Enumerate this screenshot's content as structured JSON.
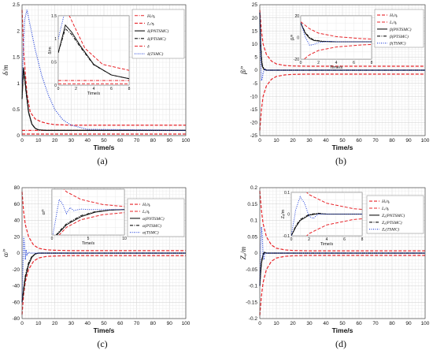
{
  "chart_data": [
    {
      "panel": "(a)",
      "type": "line",
      "xlabel": "Time/s",
      "ylabel": "δ/m",
      "xlim": [
        0,
        100
      ],
      "ylim": [
        0,
        2.5
      ],
      "xticks": [
        "0",
        "10",
        "20",
        "30",
        "40",
        "50",
        "60",
        "70",
        "80",
        "90",
        "100"
      ],
      "yticks": [
        "0",
        "0.5",
        "1",
        "1.5",
        "2",
        "2.5"
      ],
      "grid": true,
      "legend": "top-right",
      "series": [
        {
          "name": "Hᵢ/ηᵢ",
          "color": "#e8252a",
          "dash": "dashdot",
          "x": [
            0,
            100
          ],
          "y": [
            0.1,
            0.1
          ]
        },
        {
          "name": "Lᵢ/ηᵢ",
          "color": "#e8252a",
          "dash": "dash",
          "x": [
            0,
            1,
            3,
            5,
            8,
            12,
            16,
            20,
            30,
            50,
            100
          ],
          "y": [
            2.4,
            1.6,
            0.8,
            0.45,
            0.32,
            0.26,
            0.23,
            0.21,
            0.2,
            0.2,
            0.2
          ]
        },
        {
          "name": "δ(PNTSMC)",
          "color": "#111111",
          "dash": "solid",
          "x": [
            0,
            0.8,
            1.5,
            2.5,
            4,
            6,
            8,
            10,
            15,
            20,
            100
          ],
          "y": [
            0.7,
            1.3,
            1.15,
            0.85,
            0.45,
            0.22,
            0.14,
            0.11,
            0.1,
            0.1,
            0.1
          ]
        },
        {
          "name": "δ(PTSMC)",
          "color": "#111111",
          "dash": "dashdot",
          "x": [
            0,
            0.8,
            1.5,
            2.5,
            4,
            6,
            8,
            10,
            15,
            20,
            100
          ],
          "y": [
            0.7,
            1.22,
            1.1,
            0.82,
            0.44,
            0.22,
            0.14,
            0.11,
            0.1,
            0.1,
            0.1
          ]
        },
        {
          "name": "δ",
          "color": "#e8252a",
          "dash": "dash",
          "x": [
            0,
            100
          ],
          "y": [
            0.03,
            0.03
          ]
        },
        {
          "name": "δ(TSMC)",
          "color": "#1f3fd8",
          "dash": "dot",
          "x": [
            0,
            1.5,
            3,
            5,
            8,
            12,
            16,
            20,
            25,
            30,
            40,
            100
          ],
          "y": [
            1.0,
            2.2,
            2.4,
            2.1,
            1.65,
            1.15,
            0.78,
            0.5,
            0.3,
            0.2,
            0.12,
            0.1
          ]
        }
      ],
      "inset": {
        "xlim": [
          0,
          8
        ],
        "ylim": [
          0,
          1.5
        ],
        "xticks": [
          "0",
          "2",
          "4",
          "6",
          "8"
        ],
        "yticks": [
          "0",
          "0.5",
          "1",
          "1.5"
        ],
        "xlabel": "Time/s",
        "ylabel": "δ/m"
      }
    },
    {
      "panel": "(b)",
      "type": "line",
      "xlabel": "Time/s",
      "ylabel": "β/º",
      "xlim": [
        0,
        100
      ],
      "ylim": [
        -25,
        25
      ],
      "xticks": [
        "0",
        "10",
        "20",
        "30",
        "40",
        "50",
        "60",
        "70",
        "80",
        "90",
        "100"
      ],
      "yticks": [
        "-25",
        "-20",
        "-15",
        "-10",
        "-5",
        "0",
        "5",
        "10",
        "15",
        "20",
        "25"
      ],
      "grid": true,
      "legend": "top-right",
      "series": [
        {
          "name": "Hᵢ/ηᵢ",
          "color": "#e8252a",
          "dash": "dash",
          "x": [
            0,
            1,
            2,
            4,
            7,
            10,
            15,
            20,
            30,
            100
          ],
          "y": [
            23,
            15,
            10,
            6,
            3.5,
            2.4,
            1.8,
            1.6,
            1.5,
            1.5
          ]
        },
        {
          "name": "Lᵢ/ηᵢ",
          "color": "#e8252a",
          "dash": "dash",
          "x": [
            0,
            1,
            2,
            4,
            7,
            10,
            15,
            20,
            30,
            100
          ],
          "y": [
            -23,
            -15,
            -10,
            -6,
            -3.5,
            -2.4,
            -1.8,
            -1.6,
            -1.5,
            -1.5
          ]
        },
        {
          "name": "β(PNTSMC)",
          "color": "#111111",
          "dash": "solid",
          "x": [
            0,
            0.5,
            1,
            1.5,
            2.5,
            4,
            100
          ],
          "y": [
            22,
            10,
            4,
            1.5,
            0.3,
            0,
            0
          ]
        },
        {
          "name": "β(PTSMC)",
          "color": "#111111",
          "dash": "dashdot",
          "x": [
            0,
            0.5,
            1,
            1.5,
            2.5,
            4,
            100
          ],
          "y": [
            22,
            11,
            5,
            2,
            0.6,
            0,
            0
          ]
        },
        {
          "name": "β(TSMC)",
          "color": "#1f3fd8",
          "dash": "dot",
          "x": [
            0,
            0.5,
            1,
            1.5,
            2,
            3,
            4,
            100
          ],
          "y": [
            22,
            6,
            -4,
            -3,
            -1,
            0.5,
            0,
            0
          ]
        }
      ],
      "inset": {
        "xlim": [
          0,
          8
        ],
        "ylim": [
          -20,
          30
        ],
        "xticks": [
          "0",
          "2",
          "4",
          "6",
          "8"
        ],
        "yticks": [
          "-20",
          "0",
          "20"
        ],
        "xlabel": "Time/s",
        "ylabel": "β/º"
      }
    },
    {
      "panel": "(c)",
      "type": "line",
      "xlabel": "Time/s",
      "ylabel": "α/º",
      "xlim": [
        0,
        100
      ],
      "ylim": [
        -80,
        80
      ],
      "xticks": [
        "0",
        "10",
        "20",
        "30",
        "40",
        "50",
        "60",
        "70",
        "80",
        "90",
        "100"
      ],
      "yticks": [
        "-80",
        "-60",
        "-40",
        "-20",
        "0",
        "20",
        "40",
        "60",
        "80"
      ],
      "grid": true,
      "legend": "top-right",
      "series": [
        {
          "name": "Hᵢ/ηᵢ",
          "color": "#e8252a",
          "dash": "dash",
          "x": [
            0,
            1,
            2,
            4,
            7,
            10,
            15,
            20,
            30,
            100
          ],
          "y": [
            75,
            50,
            35,
            20,
            10,
            6,
            4,
            3.5,
            3,
            3
          ]
        },
        {
          "name": "Lᵢ/ηᵢ",
          "color": "#e8252a",
          "dash": "dash",
          "x": [
            0,
            1,
            2,
            4,
            7,
            10,
            15,
            20,
            30,
            100
          ],
          "y": [
            -75,
            -50,
            -35,
            -20,
            -10,
            -6,
            -4,
            -3.5,
            -3,
            -3
          ]
        },
        {
          "name": "α(PNTSMC)",
          "color": "#111111",
          "dash": "solid",
          "x": [
            0,
            1,
            2,
            4,
            6,
            8,
            10,
            100
          ],
          "y": [
            -60,
            -45,
            -30,
            -14,
            -5,
            -1,
            0,
            0
          ]
        },
        {
          "name": "α(PTSMC)",
          "color": "#111111",
          "dash": "dashdot",
          "x": [
            0,
            1,
            2,
            4,
            6,
            8,
            10,
            100
          ],
          "y": [
            -60,
            -43,
            -28,
            -12,
            -4,
            -1,
            0,
            0
          ]
        },
        {
          "name": "α(TSMC)",
          "color": "#1f3fd8",
          "dash": "dot",
          "x": [
            0,
            0.5,
            1,
            1.5,
            2,
            2.5,
            3,
            4,
            5,
            100
          ],
          "y": [
            -60,
            -20,
            20,
            10,
            -8,
            4,
            -2,
            1,
            0,
            0
          ]
        }
      ],
      "inset": {
        "xlim": [
          0,
          10
        ],
        "ylim": [
          -50,
          40
        ],
        "xticks": [
          "0",
          "5",
          "10"
        ],
        "yticks": [],
        "xlabel": "Time/s",
        "ylabel": "α/º"
      }
    },
    {
      "panel": "(d)",
      "type": "line",
      "xlabel": "Time/s",
      "ylabel": "Zₑ/m",
      "xlim": [
        0,
        100
      ],
      "ylim": [
        -0.2,
        0.2
      ],
      "xticks": [
        "0",
        "10",
        "20",
        "30",
        "40",
        "50",
        "60",
        "70",
        "80",
        "90",
        "100"
      ],
      "yticks": [
        "-0.2",
        "-0.15",
        "-0.1",
        "-0.05",
        "0",
        "0.05",
        "0.1",
        "0.15",
        "0.2"
      ],
      "grid": true,
      "legend": "top-right",
      "series": [
        {
          "name": "Hᵢ/ηᵢ",
          "color": "#e8252a",
          "dash": "dash",
          "x": [
            0,
            1,
            2,
            4,
            7,
            10,
            15,
            20,
            30,
            100
          ],
          "y": [
            0.19,
            0.13,
            0.09,
            0.05,
            0.025,
            0.015,
            0.01,
            0.008,
            0.007,
            0.007
          ]
        },
        {
          "name": "Lᵢ/ηᵢ",
          "color": "#e8252a",
          "dash": "dash",
          "x": [
            0,
            1,
            2,
            4,
            7,
            10,
            15,
            20,
            30,
            100
          ],
          "y": [
            -0.19,
            -0.13,
            -0.09,
            -0.05,
            -0.025,
            -0.015,
            -0.01,
            -0.008,
            -0.007,
            -0.007
          ]
        },
        {
          "name": "Zₑ(PNTSMC)",
          "color": "#111111",
          "dash": "solid",
          "x": [
            0,
            0.5,
            1,
            2,
            3,
            4,
            100
          ],
          "y": [
            -0.1,
            -0.06,
            -0.03,
            -0.005,
            0.002,
            0,
            0
          ]
        },
        {
          "name": "Zₑ(PTSMC)",
          "color": "#111111",
          "dash": "dashdot",
          "x": [
            0,
            0.5,
            1,
            2,
            3,
            4,
            100
          ],
          "y": [
            -0.1,
            -0.055,
            -0.025,
            -0.002,
            0.004,
            0,
            0
          ]
        },
        {
          "name": "Zₑ(TSMC)",
          "color": "#1f3fd8",
          "dash": "dot",
          "x": [
            0,
            0.5,
            1,
            1.5,
            2,
            2.5,
            3,
            4,
            100
          ],
          "y": [
            -0.1,
            0.02,
            0.08,
            0.05,
            -0.01,
            -0.02,
            0,
            0,
            0
          ]
        }
      ],
      "inset": {
        "xlim": [
          0,
          8
        ],
        "ylim": [
          -0.1,
          0.1
        ],
        "xticks": [
          "0",
          "2",
          "4",
          "6",
          "8"
        ],
        "yticks": [
          "-0.1",
          "0",
          "0.1"
        ],
        "xlabel": "Time/s",
        "ylabel": "Zₑ/m"
      }
    }
  ]
}
